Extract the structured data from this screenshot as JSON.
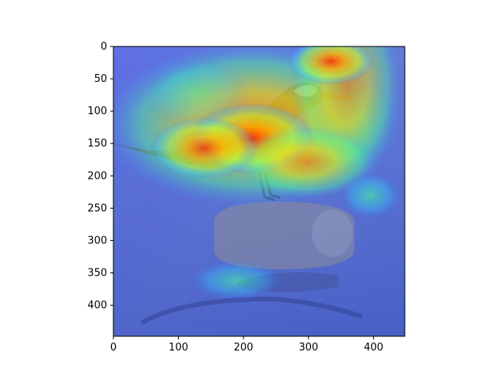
{
  "chart_data": {
    "type": "heatmap",
    "description_visible": "image overlaid with a jet-colormap heat map",
    "title": "",
    "xlabel": "",
    "ylabel": "",
    "xlim": [
      0,
      448
    ],
    "ylim": [
      448,
      0
    ],
    "x_ticks": [
      0,
      100,
      200,
      300,
      400
    ],
    "y_ticks": [
      0,
      50,
      100,
      150,
      200,
      250,
      300,
      350,
      400
    ],
    "colormap": "jet",
    "background_color": "#5a6fd6",
    "hotspots": [
      {
        "x": 215,
        "y": 145,
        "intensity": 1.0
      },
      {
        "x": 340,
        "y": 78,
        "intensity": 0.85
      },
      {
        "x": 265,
        "y": 170,
        "intensity": 0.75
      },
      {
        "x": 140,
        "y": 160,
        "intensity": 0.6
      },
      {
        "x": 375,
        "y": 110,
        "intensity": 0.45
      },
      {
        "x": 185,
        "y": 355,
        "intensity": 0.35
      }
    ]
  }
}
